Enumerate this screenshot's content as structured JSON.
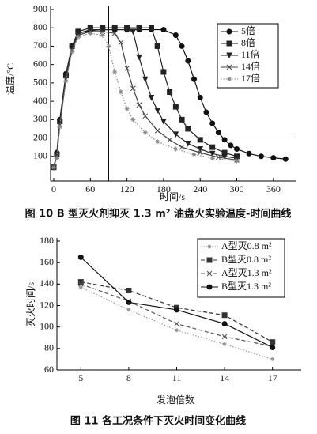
{
  "chart_data": [
    {
      "type": "line",
      "caption": "图 10  B 型灭火剂抑灭 1.3 m² 油盘火实验温度-时间曲线",
      "x_label": "时间/s",
      "y_label": "温度/°C",
      "xlim": [
        0,
        390
      ],
      "ylim": [
        0,
        900
      ],
      "xticks": [
        0,
        60,
        120,
        180,
        240,
        300,
        360
      ],
      "yticks": [
        100,
        200,
        300,
        400,
        500,
        600,
        700,
        800,
        900
      ],
      "hline": 200,
      "vline": 90,
      "series": [
        {
          "name": "5倍",
          "color": "#111111",
          "marker": "circle",
          "line_style": "solid",
          "x": [
            0,
            5,
            10,
            20,
            30,
            40,
            60,
            80,
            100,
            120,
            140,
            160,
            180,
            200,
            210,
            220,
            230,
            240,
            250,
            260,
            270,
            280,
            290,
            300,
            320,
            340,
            360,
            380
          ],
          "values": [
            40,
            120,
            300,
            550,
            700,
            770,
            785,
            790,
            790,
            790,
            790,
            790,
            790,
            760,
            700,
            620,
            520,
            420,
            340,
            280,
            230,
            190,
            160,
            140,
            115,
            100,
            92,
            85
          ]
        },
        {
          "name": "8倍",
          "color": "#222222",
          "marker": "square",
          "line_style": "solid",
          "x": [
            0,
            5,
            10,
            20,
            30,
            40,
            60,
            80,
            100,
            120,
            140,
            160,
            170,
            180,
            190,
            200,
            210,
            220,
            240,
            260,
            280,
            300
          ],
          "values": [
            40,
            110,
            290,
            540,
            700,
            780,
            800,
            800,
            800,
            800,
            800,
            800,
            700,
            560,
            450,
            370,
            300,
            250,
            190,
            150,
            120,
            100
          ]
        },
        {
          "name": "11倍",
          "color": "#222222",
          "marker": "triangle",
          "line_style": "solid",
          "x": [
            0,
            5,
            10,
            20,
            30,
            40,
            60,
            80,
            100,
            120,
            130,
            140,
            150,
            160,
            170,
            180,
            200,
            220,
            240,
            260,
            280,
            300
          ],
          "values": [
            40,
            100,
            280,
            530,
            690,
            770,
            790,
            790,
            790,
            790,
            780,
            640,
            520,
            420,
            350,
            290,
            220,
            170,
            140,
            115,
            100,
            90
          ]
        },
        {
          "name": "14倍",
          "color": "#444444",
          "marker": "cross",
          "line_style": "solid",
          "x": [
            0,
            5,
            10,
            20,
            30,
            40,
            60,
            80,
            100,
            110,
            120,
            130,
            140,
            150,
            170,
            190,
            210,
            240,
            270,
            300
          ],
          "values": [
            40,
            100,
            270,
            520,
            680,
            760,
            780,
            780,
            770,
            720,
            580,
            470,
            380,
            320,
            240,
            190,
            150,
            120,
            95,
            80
          ]
        },
        {
          "name": "17倍",
          "color": "#888888",
          "marker": "star",
          "line_style": "dotted",
          "x": [
            0,
            5,
            10,
            20,
            30,
            40,
            60,
            80,
            90,
            100,
            110,
            120,
            130,
            150,
            170,
            200,
            230,
            260,
            300
          ],
          "values": [
            40,
            90,
            260,
            510,
            670,
            750,
            770,
            760,
            700,
            560,
            450,
            360,
            300,
            230,
            180,
            140,
            110,
            90,
            75
          ]
        }
      ]
    },
    {
      "type": "line",
      "caption": "图 11  各工况条件下灭火时间变化曲线",
      "x_label": "发泡倍数",
      "y_label": "灭火时间/s",
      "xlim": [
        3.5,
        18.5
      ],
      "ylim": [
        60,
        180
      ],
      "xticks": [
        5,
        8,
        11,
        14,
        17
      ],
      "yticks": [
        60,
        80,
        100,
        120,
        140,
        160,
        180
      ],
      "series": [
        {
          "name": "A型灭0.8 m²",
          "color": "#999999",
          "marker": "dot",
          "line_style": "dotted",
          "x": [
            5,
            8,
            11,
            14,
            17
          ],
          "values": [
            137,
            116,
            97,
            84,
            70
          ]
        },
        {
          "name": "B型灭0.8 m²",
          "color": "#333333",
          "marker": "square",
          "line_style": "dashed",
          "x": [
            5,
            8,
            11,
            14,
            17
          ],
          "values": [
            142,
            134,
            118,
            111,
            86
          ]
        },
        {
          "name": "A型灭1.3 m²",
          "color": "#555555",
          "marker": "cross",
          "line_style": "dashed",
          "x": [
            5,
            8,
            11,
            14,
            17
          ],
          "values": [
            140,
            124,
            103,
            91,
            82
          ]
        },
        {
          "name": "B型灭1.3 m²",
          "color": "#111111",
          "marker": "circle",
          "line_style": "solid",
          "x": [
            5,
            8,
            11,
            14,
            17
          ],
          "values": [
            165,
            123,
            116,
            103,
            81
          ]
        }
      ]
    }
  ]
}
